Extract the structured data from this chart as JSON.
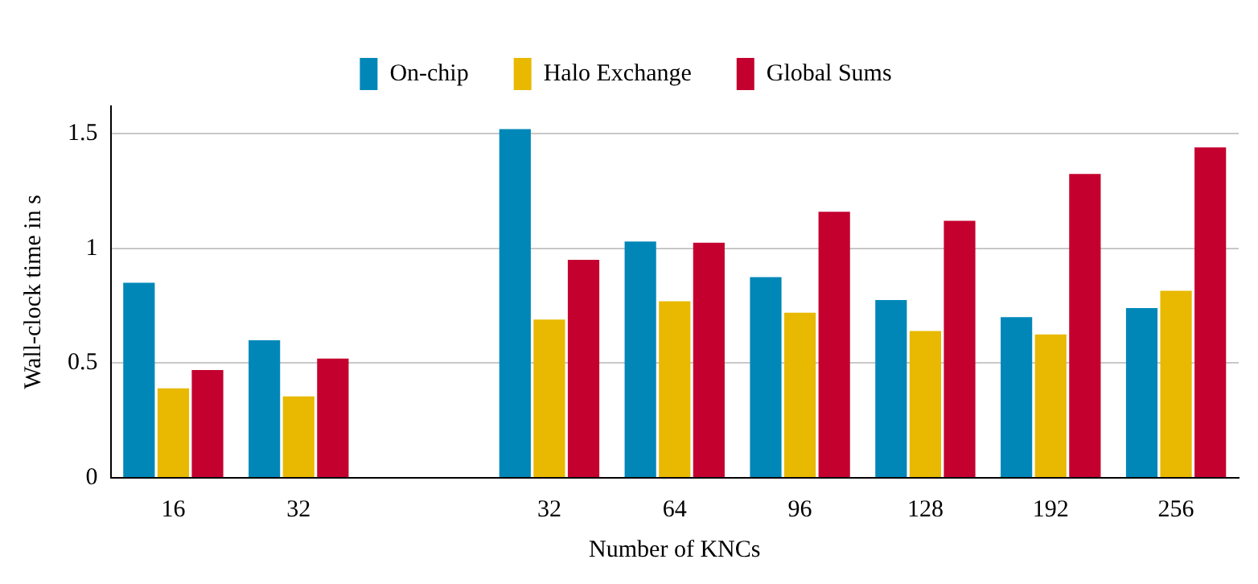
{
  "chart_data": {
    "type": "bar",
    "xlabel": "Number of KNCs",
    "ylabel": "Wall-clock time in s",
    "categories": [
      "16",
      "32",
      null,
      "32",
      "64",
      "96",
      "128",
      "192",
      "256"
    ],
    "series": [
      {
        "name": "On-chip",
        "color": "#0087b8",
        "values": [
          0.85,
          0.6,
          null,
          1.52,
          1.03,
          0.875,
          0.775,
          0.7,
          0.74
        ]
      },
      {
        "name": "Halo Exchange",
        "color": "#e8b900",
        "values": [
          0.39,
          0.355,
          null,
          0.69,
          0.77,
          0.72,
          0.64,
          0.625,
          0.815
        ]
      },
      {
        "name": "Global Sums",
        "color": "#c4002f",
        "values": [
          0.47,
          0.52,
          null,
          0.95,
          1.025,
          1.16,
          1.12,
          1.325,
          1.44
        ]
      }
    ],
    "ylim": [
      0,
      1.62
    ],
    "yticks": [
      0,
      0.5,
      1,
      1.5
    ],
    "grid": "y",
    "legend": "top"
  }
}
